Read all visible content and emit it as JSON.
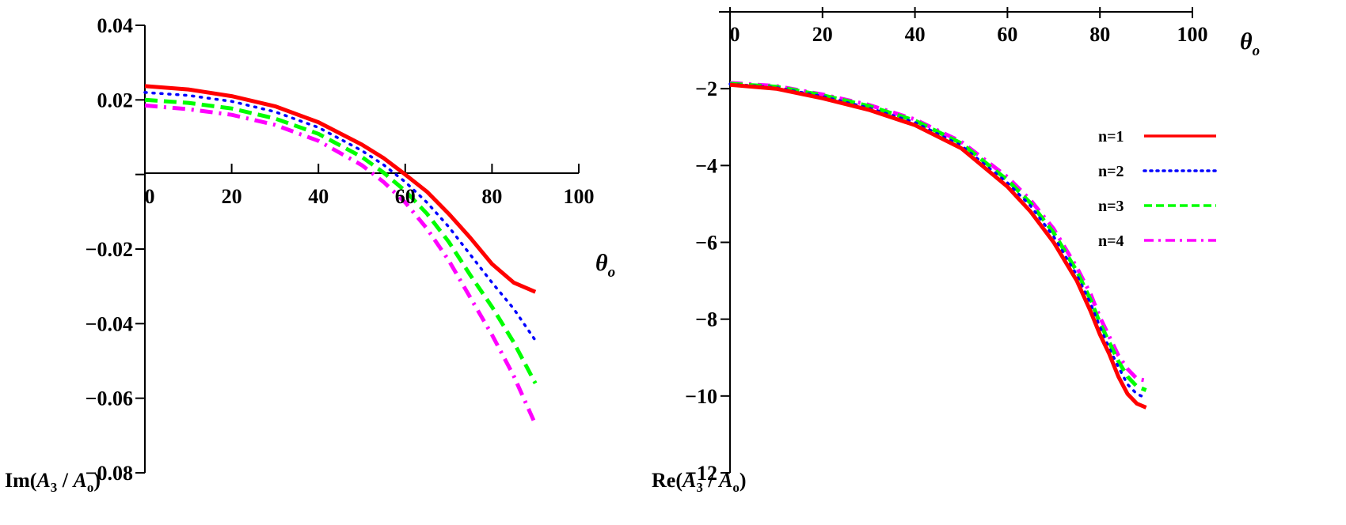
{
  "chart_data": [
    {
      "type": "line",
      "xlabel": {
        "main": "θ",
        "sub": "o"
      },
      "ylabel": {
        "prefix": "Im(",
        "A1": "A",
        "s1": "3",
        "mid": " / ",
        "A2": "A",
        "s2": "o",
        "suffix": ")"
      },
      "xlim": [
        0,
        100
      ],
      "ylim": [
        -0.08,
        0.04
      ],
      "xticks": [
        0,
        20,
        40,
        60,
        80,
        100
      ],
      "xtick_labels": [
        "0",
        "20",
        "40",
        "60",
        "80",
        "100"
      ],
      "yticks": [
        0.04,
        0.02,
        -0.02,
        -0.04,
        -0.06,
        -0.08
      ],
      "ytick_labels": [
        "0.04",
        "0.02",
        "−0.02",
        "−0.04",
        "−0.06",
        "−0.08"
      ],
      "x": [
        0,
        10,
        20,
        30,
        40,
        50,
        55,
        60,
        65,
        70,
        75,
        80,
        85,
        90
      ],
      "series": [
        {
          "name": "n=1",
          "color": "#ff0000",
          "style": "solid",
          "values": [
            0.0237,
            0.0228,
            0.021,
            0.0183,
            0.014,
            0.008,
            0.0044,
            0.0,
            -0.0046,
            -0.0105,
            -0.017,
            -0.024,
            -0.029,
            -0.0315
          ]
        },
        {
          "name": "n=2",
          "color": "#0000ff",
          "style": "dot",
          "values": [
            0.022,
            0.0212,
            0.0196,
            0.0168,
            0.0126,
            0.0064,
            0.0026,
            -0.002,
            -0.0075,
            -0.014,
            -0.0215,
            -0.029,
            -0.036,
            -0.0445
          ]
        },
        {
          "name": "n=3",
          "color": "#00ff00",
          "style": "dash",
          "values": [
            0.02,
            0.0192,
            0.0177,
            0.015,
            0.0109,
            0.0047,
            0.0005,
            -0.0044,
            -0.0105,
            -0.018,
            -0.027,
            -0.0355,
            -0.045,
            -0.056
          ]
        },
        {
          "name": "n=4",
          "color": "#ff00ff",
          "style": "dashdot",
          "values": [
            0.0185,
            0.0175,
            0.016,
            0.0133,
            0.009,
            0.0025,
            -0.002,
            -0.0075,
            -0.0145,
            -0.023,
            -0.033,
            -0.043,
            -0.054,
            -0.067
          ]
        }
      ]
    },
    {
      "type": "line",
      "xlabel": {
        "main": "θ",
        "sub": "o"
      },
      "ylabel": {
        "prefix": "Re(",
        "A1": "A",
        "s1": "3",
        "mid": " / ",
        "A2": "A",
        "s2": "o",
        "suffix": ")"
      },
      "xlim": [
        0,
        100
      ],
      "ylim": [
        -12,
        0
      ],
      "xticks": [
        0,
        20,
        40,
        60,
        80,
        100
      ],
      "xtick_labels": [
        "0",
        "20",
        "40",
        "60",
        "80",
        "100"
      ],
      "yticks": [
        -2,
        -4,
        -6,
        -8,
        -10,
        -12
      ],
      "ytick_labels": [
        "−2",
        "−4",
        "−6",
        "−8",
        "−10",
        "−12"
      ],
      "legend_position": "right",
      "x": [
        0,
        10,
        20,
        30,
        40,
        50,
        60,
        65,
        70,
        75,
        78,
        80,
        82,
        84,
        86,
        88,
        90
      ],
      "series": [
        {
          "name": "n=1",
          "color": "#ff0000",
          "style": "solid",
          "values": [
            -1.9,
            -2.0,
            -2.25,
            -2.55,
            -2.95,
            -3.55,
            -4.55,
            -5.2,
            -6.0,
            -7.0,
            -7.8,
            -8.4,
            -8.9,
            -9.5,
            -9.95,
            -10.2,
            -10.3
          ]
        },
        {
          "name": "n=2",
          "color": "#0000ff",
          "style": "dot",
          "values": [
            -1.88,
            -1.97,
            -2.2,
            -2.5,
            -2.88,
            -3.48,
            -4.45,
            -5.05,
            -5.85,
            -6.85,
            -7.6,
            -8.2,
            -8.75,
            -9.25,
            -9.7,
            -9.95,
            -10.05
          ]
        },
        {
          "name": "n=3",
          "color": "#00ff00",
          "style": "dash",
          "values": [
            -1.87,
            -1.95,
            -2.17,
            -2.45,
            -2.83,
            -3.42,
            -4.38,
            -4.98,
            -5.75,
            -6.75,
            -7.5,
            -8.1,
            -8.6,
            -9.1,
            -9.5,
            -9.75,
            -9.85
          ]
        },
        {
          "name": "n=4",
          "color": "#ff00ff",
          "style": "dashdot",
          "values": [
            -1.85,
            -1.93,
            -2.15,
            -2.42,
            -2.8,
            -3.38,
            -4.3,
            -4.9,
            -5.65,
            -6.65,
            -7.35,
            -7.95,
            -8.45,
            -8.95,
            -9.3,
            -9.55,
            -9.6
          ]
        }
      ]
    }
  ]
}
